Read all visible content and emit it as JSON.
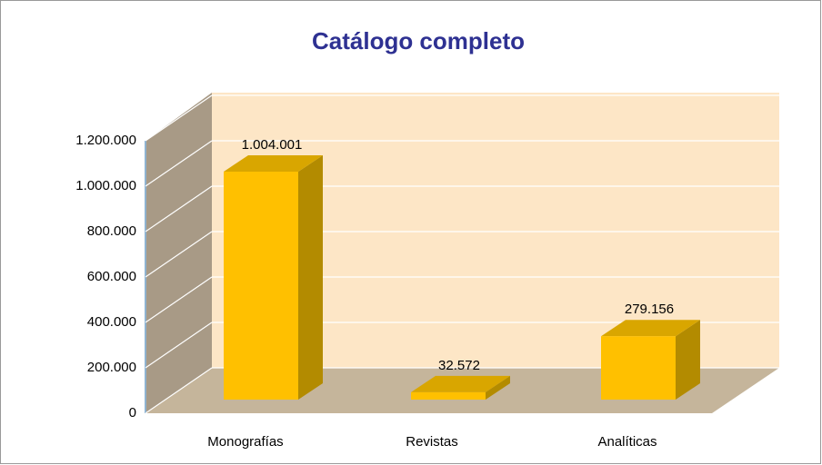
{
  "chart_data": {
    "type": "bar3d",
    "title": "Catálogo completo",
    "categories": [
      "Monografías",
      "Revistas",
      "Analíticas"
    ],
    "values": [
      1004001,
      32572,
      279156
    ],
    "value_labels": [
      "1.004.001",
      "32.572",
      "279.156"
    ],
    "color": "#ffc000",
    "ylim": [
      0,
      1200000
    ],
    "yticks": [
      0,
      {
        "value": 200000,
        "label": "200.000"
      },
      {
        "value": 400000,
        "label": "400.000"
      },
      {
        "value": 600000,
        "label": "600.000"
      },
      {
        "value": 800000,
        "label": "800.000"
      },
      {
        "value": 1000000,
        "label": "1.000.000"
      },
      {
        "value": 1200000,
        "label": "1.200.000"
      }
    ],
    "grid": true
  }
}
